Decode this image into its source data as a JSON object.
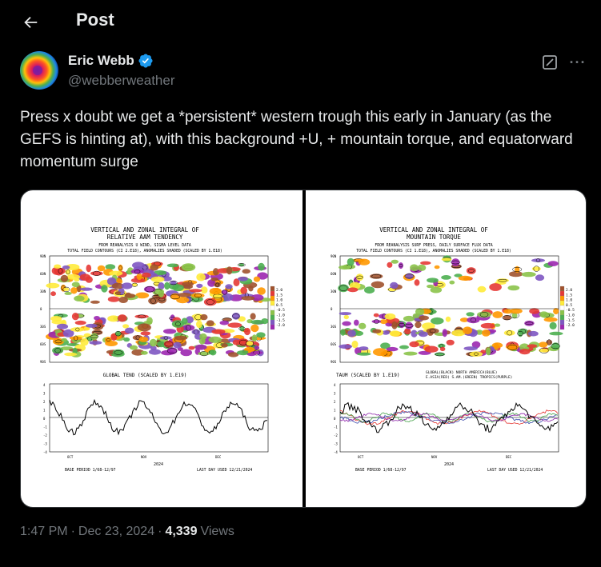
{
  "header": {
    "title": "Post"
  },
  "author": {
    "display_name": "Eric Webb",
    "handle": "@webberweather",
    "verified": true
  },
  "post": {
    "text": "Press x doubt we get a *persistent* western trough this early in January (as the GEFS is hinting at), with this background +U, + mountain torque, and equatorward momentum surge"
  },
  "media": {
    "left": {
      "title1": "VERTICAL AND ZONAL INTEGRAL OF",
      "title2": "RELATIVE AAM TENDENCY",
      "sub1": "FROM REANALYSIS U WIND, SIGMA LEVEL DATA",
      "sub2": "TOTAL FIELD CONTOURS (CI 2.E18),  ANOMALIES SHADED (SCALED BY 1.E18)",
      "lat_labels": [
        "90N",
        "60N",
        "30N",
        "0",
        "30S",
        "60S",
        "90S"
      ],
      "legend": [
        "2.0",
        "1.5",
        "1.0",
        "0.5",
        "-0.5",
        "-1.0",
        "-1.5",
        "-2.0"
      ],
      "line_title": "GLOBAL TEND (SCALED BY 1.E19)",
      "y_labels": [
        "4",
        "3",
        "2",
        "1",
        "0",
        "-1",
        "-2",
        "-3",
        "-4"
      ],
      "months": [
        "OCT",
        "NOV",
        "DEC"
      ],
      "year": "2024",
      "base_period": "BASE PERIOD  1/68-12/97",
      "last_day": "LAST DAY USED 12/21/2024"
    },
    "right": {
      "title1": "VERTICAL AND ZONAL INTEGRAL OF",
      "title2": "MOUNTAIN TORQUE",
      "sub1": "FROM REANALYSIS SURF PRESS, DAILY SURFACE FLUX DATA",
      "sub2": "TOTAL FIELD CONTOURS (CI 1.E18),  ANOMALIES SHADED (SCALED BY 1.E18)",
      "lat_labels": [
        "90N",
        "60N",
        "30N",
        "0",
        "30S",
        "60S",
        "90S"
      ],
      "legend": [
        "2.0",
        "1.5",
        "1.0",
        "0.5",
        "-0.5",
        "-1.0",
        "-1.5",
        "-2.0"
      ],
      "line_title": "TAUM (SCALED BY 1.E19)",
      "legend_text1": "GLOBAL(BLACK)        NORTH AMERICA(BLUE)",
      "legend_text2": "E.ASIA(RED) S.AM.(GREEN) TROPICS(PURPLE)",
      "y_labels": [
        "4",
        "3",
        "2",
        "1",
        "0",
        "-1",
        "-2",
        "-3",
        "-4"
      ],
      "months": [
        "OCT",
        "NOV",
        "DEC"
      ],
      "year": "2024",
      "base_period": "BASE PERIOD  1/68-12/97",
      "last_day": "LAST DAY USED 12/21/2024"
    }
  },
  "meta": {
    "time": "1:47 PM",
    "date": "Dec 23, 2024",
    "views_count": "4,339",
    "views_label": "Views"
  },
  "colors": {
    "background": "#000000",
    "text": "#e7e9ea",
    "secondary": "#71767b",
    "verified": "#1d9bf0"
  }
}
